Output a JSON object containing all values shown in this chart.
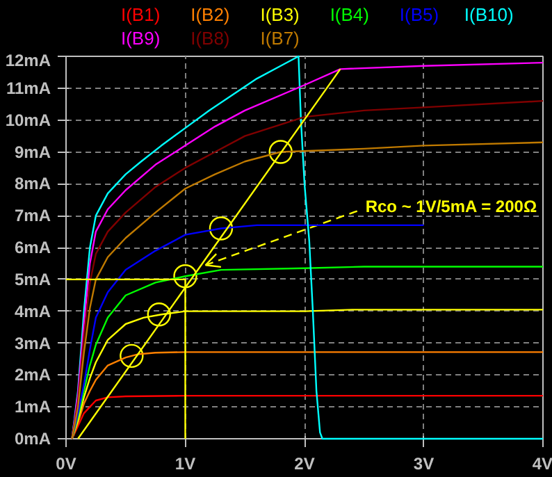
{
  "chart_data": {
    "type": "line",
    "xlim": [
      0,
      4
    ],
    "ylim": [
      0,
      12
    ],
    "xticks": [
      {
        "value": 0,
        "label": "0V"
      },
      {
        "value": 1,
        "label": "1V"
      },
      {
        "value": 2,
        "label": "2V"
      },
      {
        "value": 3,
        "label": "3V"
      },
      {
        "value": 4,
        "label": "4V"
      }
    ],
    "yticks": [
      {
        "value": 0,
        "label": "0mA"
      },
      {
        "value": 1,
        "label": "1mA"
      },
      {
        "value": 2,
        "label": "2mA"
      },
      {
        "value": 3,
        "label": "3mA"
      },
      {
        "value": 4,
        "label": "4mA"
      },
      {
        "value": 5,
        "label": "5mA"
      },
      {
        "value": 6,
        "label": "6mA"
      },
      {
        "value": 7,
        "label": "7mA"
      },
      {
        "value": 8,
        "label": "8mA"
      },
      {
        "value": 9,
        "label": "9mA"
      },
      {
        "value": 10,
        "label": "10mA"
      },
      {
        "value": 11,
        "label": "11mA"
      },
      {
        "value": 12,
        "label": "12mA"
      }
    ],
    "grid": true,
    "series": [
      {
        "name": "I(B1)",
        "color": "#ff0000",
        "x": [
          0.05,
          0.1,
          0.15,
          0.2,
          0.25,
          0.35,
          0.5,
          1,
          2,
          3,
          4
        ],
        "values": [
          0,
          0.4,
          0.8,
          1.0,
          1.2,
          1.3,
          1.33,
          1.35,
          1.35,
          1.35,
          1.35
        ]
      },
      {
        "name": "I(B2)",
        "color": "#ff8000",
        "x": [
          0.05,
          0.1,
          0.15,
          0.2,
          0.25,
          0.35,
          0.5,
          0.6,
          0.75,
          1,
          2,
          3,
          4
        ],
        "values": [
          0,
          0.5,
          1.1,
          1.5,
          1.85,
          2.3,
          2.55,
          2.65,
          2.7,
          2.72,
          2.72,
          2.72,
          2.72
        ]
      },
      {
        "name": "I(B3)",
        "color": "#ffff00",
        "x": [
          0.05,
          0.1,
          0.15,
          0.2,
          0.25,
          0.35,
          0.5,
          0.65,
          0.8,
          1,
          1.5,
          2,
          2.4,
          3,
          4
        ],
        "values": [
          0,
          0.6,
          1.3,
          1.9,
          2.4,
          3.1,
          3.6,
          3.8,
          3.9,
          4.0,
          4.0,
          4.0,
          4.05,
          4.05,
          4.05
        ]
      },
      {
        "name": "I(B4)",
        "color": "#00ff00",
        "x": [
          0.05,
          0.1,
          0.15,
          0.2,
          0.25,
          0.35,
          0.5,
          0.75,
          1,
          1.3,
          2,
          2.5,
          3,
          4
        ],
        "values": [
          0,
          0.7,
          1.5,
          2.3,
          2.95,
          3.8,
          4.5,
          4.9,
          5.1,
          5.3,
          5.35,
          5.4,
          5.4,
          5.4
        ]
      },
      {
        "name": "I(B5)",
        "color": "#0000ff",
        "x": [
          0.05,
          0.1,
          0.15,
          0.2,
          0.25,
          0.35,
          0.5,
          0.75,
          1,
          1.3,
          1.6,
          2,
          3
        ],
        "values": [
          0,
          0.8,
          1.7,
          2.8,
          3.8,
          4.6,
          5.3,
          5.9,
          6.4,
          6.6,
          6.7,
          6.7,
          6.7
        ]
      },
      {
        "name": "I(B10)",
        "color": "#00ffff",
        "x": [
          0.05,
          0.1,
          0.15,
          0.2,
          0.25,
          0.35,
          0.5,
          0.63,
          0.8,
          1,
          1.2,
          1.4,
          1.6,
          1.8,
          1.95,
          1.97,
          2.0,
          2.04,
          2.07,
          2.1,
          2.13,
          2.15,
          4
        ],
        "values": [
          0,
          1.5,
          4,
          6,
          7,
          7.7,
          8.3,
          8.7,
          9.2,
          9.75,
          10.3,
          10.8,
          11.3,
          11.7,
          12,
          10,
          8,
          6.2,
          4,
          1.5,
          0.2,
          0,
          0
        ]
      },
      {
        "name": "I(B9)",
        "color": "#ff00ff",
        "x": [
          0.05,
          0.1,
          0.15,
          0.2,
          0.25,
          0.35,
          0.5,
          0.75,
          1,
          1.25,
          1.5,
          2,
          2.3,
          3,
          4
        ],
        "values": [
          0,
          1.4,
          3.6,
          5.5,
          6.5,
          7.2,
          7.8,
          8.6,
          9.2,
          9.8,
          10.3,
          11.1,
          11.6,
          11.7,
          11.8
        ]
      },
      {
        "name": "I(B8)",
        "color": "#800000",
        "x": [
          0.05,
          0.1,
          0.15,
          0.2,
          0.25,
          0.35,
          0.5,
          0.75,
          1,
          1.25,
          1.5,
          2,
          2.5,
          3,
          4
        ],
        "values": [
          0,
          1.2,
          3.2,
          4.9,
          5.8,
          6.5,
          7.1,
          7.9,
          8.5,
          9.0,
          9.5,
          10.1,
          10.3,
          10.4,
          10.6
        ]
      },
      {
        "name": "I(B7)",
        "color": "#c07a00",
        "x": [
          0.05,
          0.1,
          0.15,
          0.2,
          0.25,
          0.35,
          0.5,
          0.75,
          1,
          1.25,
          1.5,
          1.8,
          2.5,
          3,
          4
        ],
        "values": [
          0,
          1.0,
          2.7,
          4.1,
          5.0,
          5.7,
          6.3,
          7.1,
          7.85,
          8.3,
          8.7,
          9.0,
          9.1,
          9.2,
          9.3
        ]
      },
      {
        "type": "line",
        "color": "#ffff00",
        "x": [
          0.1,
          2.3
        ],
        "values": [
          0,
          11.6
        ]
      },
      {
        "type": "line",
        "color": "#ffff00",
        "x": [
          0,
          1,
          1
        ],
        "values": [
          5,
          5,
          0
        ]
      },
      {
        "type": "scatter",
        "color": "#ffff00",
        "x": [
          0.55,
          0.78,
          1.0,
          1.3,
          1.8
        ],
        "values": [
          2.6,
          3.9,
          5.1,
          6.6,
          9.0
        ]
      }
    ],
    "annotations": [
      {
        "text": "Rco ~ 1V/5mA = 200Ω",
        "x": 1.17,
        "y": 5.45
      }
    ]
  }
}
